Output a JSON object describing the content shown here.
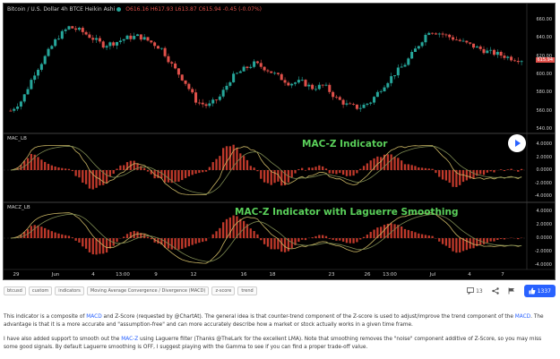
{
  "chart": {
    "ticker": "Bitcoin / U.S. Dollar  4h  BTCE  Heikin Ashi",
    "ohlc": "O616.16 H617.93 L613.87 C615.94  -0.45 (-0.07%)",
    "price_axis": [
      "660.00",
      "640.00",
      "620.00",
      "600.00",
      "580.00",
      "560.00",
      "540.00"
    ],
    "current_price": "615.94",
    "x_labels": [
      "29",
      "Jun",
      "4",
      "13:00",
      "9",
      "12",
      "16",
      "18",
      "23",
      "26",
      "13:00",
      "Jul",
      "4",
      "7"
    ],
    "pane1": {
      "label": "MAC_LB",
      "title": "MAC-Z Indicator",
      "axis": [
        "4.0000",
        "2.0000",
        "0.0000",
        "-2.0000",
        "-4.0000"
      ]
    },
    "pane2": {
      "label": "MACZ_LB",
      "title": "MAC-Z Indicator with Laguerre Smoothing",
      "axis": [
        "4.0000",
        "2.0000",
        "0.0000",
        "-2.0000",
        "-4.0000"
      ]
    },
    "colors": {
      "up": "#26a69a",
      "down": "#e0504a",
      "bg": "#000000",
      "title": "#5ad05a",
      "line1": "#c8b463",
      "line2": "#7d8a52"
    }
  },
  "chart_data": [
    {
      "type": "candlestick",
      "title": "Bitcoin / U.S. Dollar 4h BTCE Heikin Ashi",
      "ylim": [
        540,
        665
      ],
      "x_ticks": [
        "29",
        "Jun",
        "4",
        "13:00",
        "9",
        "12",
        "16",
        "18",
        "23",
        "26",
        "13:00",
        "Jul",
        "4",
        "7"
      ],
      "close_path": [
        560,
        572,
        600,
        620,
        640,
        652,
        648,
        640,
        632,
        635,
        640,
        642,
        636,
        628,
        608,
        592,
        570,
        565,
        575,
        596,
        605,
        612,
        606,
        598,
        590,
        592,
        585,
        588,
        574,
        566,
        563,
        570,
        586,
        600,
        612,
        630,
        648,
        645,
        640,
        635,
        630,
        625,
        622,
        618,
        616
      ],
      "last": 615.94
    }
  ],
  "toolbar": {
    "tags": [
      "btcusd",
      "custom",
      "indicators",
      "Moving Average Convergence / Divergence (MACD)",
      "z-score",
      "trend"
    ],
    "comments_count": "13",
    "likes_count": "1337"
  },
  "description": {
    "p1_a": "This indicator is a composite of ",
    "p1_link1": "MACD",
    "p1_b": " and Z-Score (requested by @ChartAt). The general idea is that counter-trend component of the Z-score is used to adjust/improve the trend component of the ",
    "p1_link2": "MACD",
    "p1_c": ". The advantage is that it is a more accurate and \"assumption-free\" and can more accurately describe how a market or stock actually works in a given time frame.",
    "p2_a": "I have also added support to smooth out the ",
    "p2_link": "MAC-Z",
    "p2_b": " using Laguerre filter (Thanks @TheLark for the excellent LMA). Note that smoothing removes the \"noise\" component additive of Z-Score, so you may miss some good signals. By default Laguerre smoothing is OFF, I suggest playing with the Gamma to see if you can find a proper trade-off value."
  }
}
